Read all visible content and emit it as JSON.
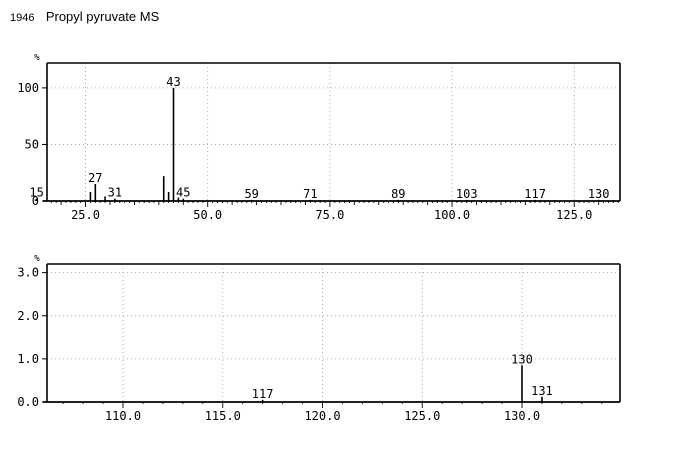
{
  "header": {
    "number": "1946",
    "title": "Propyl pyruvate MS"
  },
  "chart_data": [
    {
      "type": "bar",
      "title": "",
      "ylabel": "%",
      "xlabel": "",
      "xlim": [
        7,
        138
      ],
      "ylim": [
        0,
        122
      ],
      "grid": true,
      "xticks": [
        25,
        50,
        75,
        100,
        125
      ],
      "xtick_labels": [
        "25.0",
        "50.0",
        "75.0",
        "100.0",
        "125.0"
      ],
      "yticks": [
        0,
        50,
        100
      ],
      "ytick_labels": [
        "0",
        "50",
        "100"
      ],
      "peaks": [
        {
          "x": 15,
          "y": 2,
          "label": "15"
        },
        {
          "x": 26,
          "y": 8
        },
        {
          "x": 27,
          "y": 15,
          "label": "27"
        },
        {
          "x": 29,
          "y": 4
        },
        {
          "x": 31,
          "y": 2,
          "label": "31"
        },
        {
          "x": 41,
          "y": 22
        },
        {
          "x": 42,
          "y": 8
        },
        {
          "x": 43,
          "y": 100,
          "label": "43"
        },
        {
          "x": 44,
          "y": 3
        },
        {
          "x": 45,
          "y": 2,
          "label": "45"
        },
        {
          "x": 59,
          "y": 1,
          "label": "59"
        },
        {
          "x": 71,
          "y": 1,
          "label": "71"
        },
        {
          "x": 89,
          "y": 1,
          "label": "89"
        },
        {
          "x": 103,
          "y": 1,
          "label": "103"
        },
        {
          "x": 117,
          "y": 1,
          "label": "117"
        },
        {
          "x": 130,
          "y": 1,
          "label": "130"
        }
      ]
    },
    {
      "type": "bar",
      "title": "",
      "ylabel": "%",
      "xlabel": "",
      "xlim": [
        107,
        135
      ],
      "ylim": [
        0,
        3.2
      ],
      "grid": true,
      "xticks": [
        110,
        115,
        120,
        125,
        130
      ],
      "xtick_labels": [
        "110.0",
        "115.0",
        "120.0",
        "125.0",
        "130.0"
      ],
      "yticks": [
        0,
        1,
        2,
        3
      ],
      "ytick_labels": [
        "0.0",
        "1.0",
        "2.0",
        "3.0"
      ],
      "peaks": [
        {
          "x": 117,
          "y": 0.05,
          "label": "117"
        },
        {
          "x": 130,
          "y": 0.85,
          "label": "130"
        },
        {
          "x": 131,
          "y": 0.12,
          "label": "131"
        }
      ]
    }
  ]
}
